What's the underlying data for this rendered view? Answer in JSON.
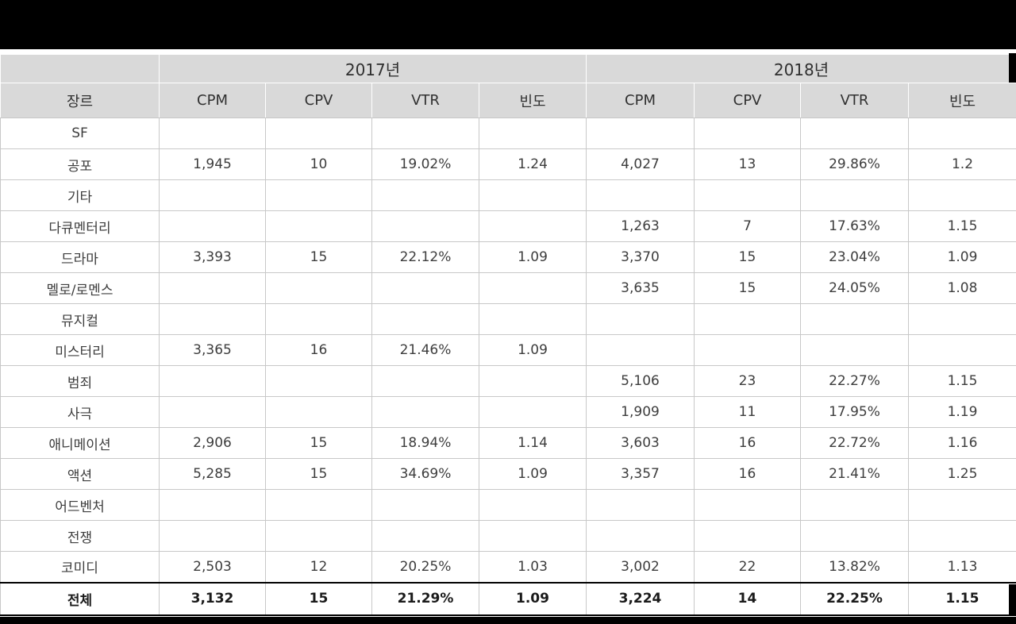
{
  "colors": {
    "top_bar": "#000000",
    "bottom_bar": "#000000",
    "header_background": "#d9d9d9",
    "cell_border": "#c8c8c8",
    "text": "#3d3d3d"
  },
  "chart_data": {
    "type": "table",
    "year_groups": [
      "2017년",
      "2018년"
    ],
    "columns": [
      "장르",
      "CPM",
      "CPV",
      "VTR",
      "빈도",
      "CPM",
      "CPV",
      "VTR",
      "빈도"
    ],
    "rows": [
      [
        "SF",
        "",
        "",
        "",
        "",
        "",
        "",
        "",
        ""
      ],
      [
        "공포",
        "1,945",
        "10",
        "19.02%",
        "1.24",
        "4,027",
        "13",
        "29.86%",
        "1.2"
      ],
      [
        "기타",
        "",
        "",
        "",
        "",
        "",
        "",
        "",
        ""
      ],
      [
        "다큐멘터리",
        "",
        "",
        "",
        "",
        "1,263",
        "7",
        "17.63%",
        "1.15"
      ],
      [
        "드라마",
        "3,393",
        "15",
        "22.12%",
        "1.09",
        "3,370",
        "15",
        "23.04%",
        "1.09"
      ],
      [
        "멜로/로멘스",
        "",
        "",
        "",
        "",
        "3,635",
        "15",
        "24.05%",
        "1.08"
      ],
      [
        "뮤지컬",
        "",
        "",
        "",
        "",
        "",
        "",
        "",
        ""
      ],
      [
        "미스터리",
        "3,365",
        "16",
        "21.46%",
        "1.09",
        "",
        "",
        "",
        ""
      ],
      [
        "범죄",
        "",
        "",
        "",
        "",
        "5,106",
        "23",
        "22.27%",
        "1.15"
      ],
      [
        "사극",
        "",
        "",
        "",
        "",
        "1,909",
        "11",
        "17.95%",
        "1.19"
      ],
      [
        "애니메이션",
        "2,906",
        "15",
        "18.94%",
        "1.14",
        "3,603",
        "16",
        "22.72%",
        "1.16"
      ],
      [
        "액션",
        "5,285",
        "15",
        "34.69%",
        "1.09",
        "3,357",
        "16",
        "21.41%",
        "1.25"
      ],
      [
        "어드벤처",
        "",
        "",
        "",
        "",
        "",
        "",
        "",
        ""
      ],
      [
        "전쟁",
        "",
        "",
        "",
        "",
        "",
        "",
        "",
        ""
      ],
      [
        "코미디",
        "2,503",
        "12",
        "20.25%",
        "1.03",
        "3,002",
        "22",
        "13.82%",
        "1.13"
      ]
    ],
    "total_row": [
      "전체",
      "3,132",
      "15",
      "21.29%",
      "1.09",
      "3,224",
      "14",
      "22.25%",
      "1.15"
    ]
  }
}
